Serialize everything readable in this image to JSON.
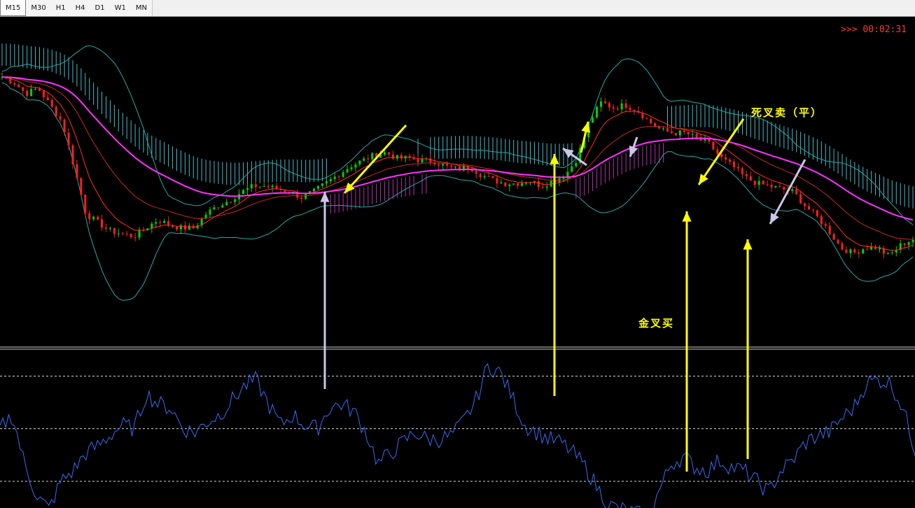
{
  "toolbar": {
    "timeframes": [
      "M15",
      "M30",
      "H1",
      "H4",
      "D1",
      "W1",
      "MN"
    ],
    "active": "M15"
  },
  "timer": {
    "text": ">>> 00:02:31"
  },
  "annotations": {
    "death_cross_sell": "死叉卖（平）",
    "golden_cross_buy": "金叉买"
  },
  "colors": {
    "background": "#000000",
    "bull_candle": "#00d200",
    "bear_candle": "#ff1e1e",
    "bollinger": "#2fa6a6",
    "ema_slow": "#ff33ff",
    "ema_fast": "#ff3322",
    "cloud_bear": "#4fe0f0",
    "cloud_bull": "#d040d0",
    "oscillator": "#3a6cf0",
    "arrow_yellow": "#ffff00",
    "arrow_white": "#c8c8e8",
    "timer": "#ff3a1a"
  },
  "chart_data": {
    "type": "line",
    "title": "",
    "main_panel": {
      "series": [
        {
          "name": "price",
          "values": [
            94,
            92,
            88,
            90,
            84,
            78,
            62,
            45,
            42,
            39,
            38,
            37,
            40,
            43,
            41,
            40,
            40,
            45,
            48,
            50,
            53,
            55,
            55,
            54,
            53,
            51,
            53,
            56,
            59,
            62,
            64,
            66,
            67,
            65,
            65,
            64,
            64,
            62,
            61,
            62,
            59,
            57,
            56,
            56,
            57,
            55,
            57,
            59,
            65,
            78,
            85,
            83,
            84,
            82,
            78,
            75,
            74,
            74,
            72,
            70,
            65,
            62,
            58,
            56,
            55,
            54,
            53,
            48,
            44,
            39,
            33,
            31,
            33,
            33,
            30,
            34,
            36
          ]
        }
      ]
    },
    "oscillator_panel": {
      "levels": [
        80,
        50,
        20
      ],
      "series": [
        {
          "name": "oscillator",
          "values": [
            50,
            58,
            30,
            12,
            4,
            20,
            26,
            36,
            40,
            46,
            52,
            50,
            70,
            64,
            62,
            50,
            48,
            54,
            58,
            66,
            74,
            78,
            64,
            52,
            58,
            52,
            50,
            62,
            64,
            60,
            48,
            30,
            36,
            42,
            48,
            44,
            44,
            46,
            54,
            66,
            86,
            82,
            68,
            52,
            48,
            44,
            42,
            36,
            28,
            16,
            6,
            4,
            2,
            0,
            14,
            30,
            34,
            28,
            26,
            32,
            28,
            26,
            20,
            14,
            26,
            32,
            42,
            46,
            48,
            56,
            62,
            76,
            78,
            76,
            62,
            38
          ]
        }
      ]
    }
  }
}
